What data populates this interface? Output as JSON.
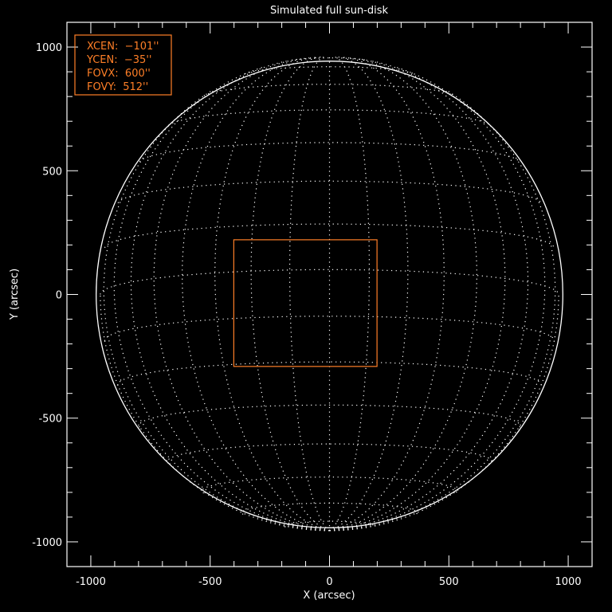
{
  "chart_data": {
    "type": "scatter",
    "title": "Simulated full sun-disk",
    "xlabel": "X (arcsec)",
    "ylabel": "Y (arcsec)",
    "xlim": [
      -1100,
      1100
    ],
    "ylim": [
      -1100,
      1100
    ],
    "x_major_ticks": [
      -1000,
      -500,
      0,
      500,
      1000
    ],
    "y_major_ticks": [
      -1000,
      -500,
      0,
      500,
      1000
    ],
    "x_tick_labels": [
      "-1000",
      "-500",
      "0",
      "500",
      "1000"
    ],
    "y_tick_labels": [
      "-1000",
      "-500",
      "0",
      "500",
      "1000"
    ],
    "minor_tick_step": 100,
    "grid": false,
    "solar_disk": {
      "radius_arcsec": 960,
      "b0_deg": -6,
      "meridian_step_deg": 10,
      "parallel_step_deg": 11.25
    },
    "field_of_view": {
      "xcen": -101,
      "ycen": -35,
      "fovx": 600,
      "fovy": 512
    },
    "legend": {
      "placement": "top-left",
      "lines": [
        "XCEN:  −101''",
        "YCEN:  −35''",
        "FOVX:  600''",
        "FOVY:  512''"
      ]
    },
    "colors": {
      "background": "#000000",
      "axes": "#ffffff",
      "annotation": "#ff7f27"
    }
  }
}
